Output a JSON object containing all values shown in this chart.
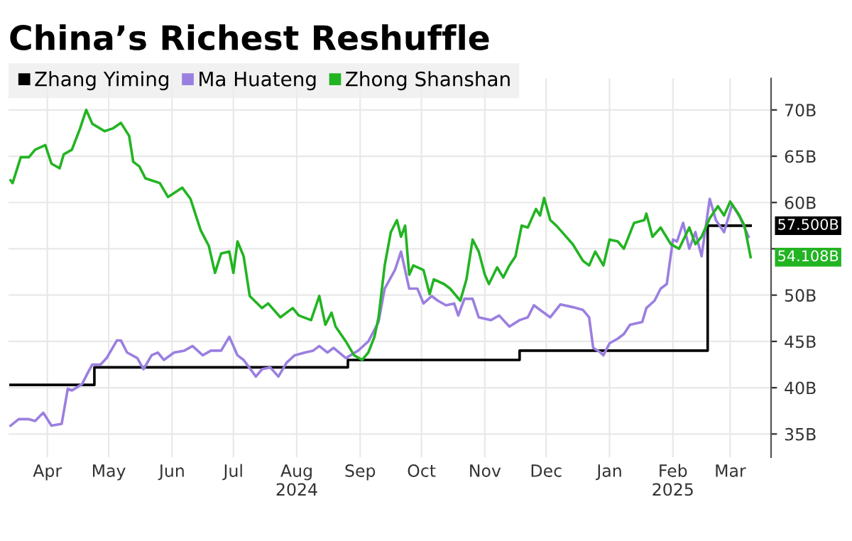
{
  "chart_data": {
    "type": "line",
    "title": "China’s Richest Reshuffle",
    "series": [
      {
        "name": "Zhang Yiming",
        "color": "#000000",
        "type": "step",
        "x": [
          "2024-03-28",
          "2024-05-08",
          "2024-09-09",
          "2024-12-02",
          "2025-03-04",
          "2025-03-25"
        ],
        "values": [
          40.3,
          42.2,
          43.0,
          44.0,
          57.5,
          57.5
        ]
      },
      {
        "name": "Ma Huateng",
        "color": "#9b7fe0",
        "x": [
          "2024-03-28",
          "2024-04-01",
          "2024-04-06",
          "2024-04-09",
          "2024-04-13",
          "2024-04-17",
          "2024-04-22",
          "2024-04-25",
          "2024-04-27",
          "2024-05-02",
          "2024-05-05",
          "2024-05-07",
          "2024-05-11",
          "2024-05-14",
          "2024-05-19",
          "2024-05-21",
          "2024-05-24",
          "2024-05-29",
          "2024-06-01",
          "2024-06-05",
          "2024-06-08",
          "2024-06-11",
          "2024-06-16",
          "2024-06-21",
          "2024-06-25",
          "2024-06-30",
          "2024-07-04",
          "2024-07-09",
          "2024-07-13",
          "2024-07-17",
          "2024-07-20",
          "2024-07-26",
          "2024-07-29",
          "2024-08-02",
          "2024-08-06",
          "2024-08-10",
          "2024-08-14",
          "2024-08-19",
          "2024-08-23",
          "2024-08-26",
          "2024-08-30",
          "2024-09-02",
          "2024-09-08",
          "2024-09-14",
          "2024-09-19",
          "2024-09-24",
          "2024-09-27",
          "2024-10-02",
          "2024-10-05",
          "2024-10-09",
          "2024-10-13",
          "2024-10-16",
          "2024-10-20",
          "2024-10-23",
          "2024-10-27",
          "2024-10-31",
          "2024-11-02",
          "2024-11-05",
          "2024-11-09",
          "2024-11-12",
          "2024-11-18",
          "2024-11-22",
          "2024-11-27",
          "2024-12-02",
          "2024-12-06",
          "2024-12-09",
          "2024-12-12",
          "2024-12-17",
          "2024-12-22",
          "2024-12-28",
          "2025-01-02",
          "2025-01-05",
          "2025-01-07",
          "2025-01-10",
          "2025-01-12",
          "2025-01-15",
          "2025-01-19",
          "2025-01-22",
          "2025-01-25",
          "2025-01-31",
          "2025-02-02",
          "2025-02-06",
          "2025-02-09",
          "2025-02-12",
          "2025-02-15",
          "2025-02-17",
          "2025-02-20",
          "2025-02-23",
          "2025-02-26",
          "2025-03-01",
          "2025-03-05",
          "2025-03-08",
          "2025-03-12",
          "2025-03-16",
          "2025-03-20",
          "2025-03-24"
        ],
        "values": [
          35.9,
          36.6,
          36.6,
          36.4,
          37.3,
          35.9,
          36.1,
          39.9,
          39.7,
          40.4,
          41.7,
          42.5,
          42.5,
          43.2,
          45.1,
          45.1,
          43.8,
          43.2,
          42.0,
          43.5,
          43.8,
          43.0,
          43.8,
          44.0,
          44.5,
          43.5,
          44.0,
          44.0,
          45.5,
          43.5,
          43.0,
          41.2,
          42.0,
          42.2,
          41.2,
          42.7,
          43.5,
          43.8,
          44.0,
          44.5,
          43.8,
          44.3,
          43.2,
          44.0,
          45.0,
          47.1,
          50.7,
          52.7,
          54.7,
          50.7,
          50.7,
          49.1,
          49.9,
          49.4,
          48.9,
          49.1,
          47.8,
          49.6,
          49.6,
          47.6,
          47.3,
          47.8,
          46.6,
          47.3,
          47.6,
          48.9,
          48.4,
          47.6,
          49.0,
          48.7,
          48.4,
          47.6,
          44.3,
          43.9,
          43.5,
          44.8,
          45.3,
          45.8,
          46.8,
          47.1,
          48.6,
          49.4,
          50.7,
          51.2,
          56.0,
          55.8,
          57.8,
          55.0,
          56.8,
          54.2,
          60.4,
          58.1,
          56.8,
          59.8,
          58.3,
          56.3
        ]
      },
      {
        "name": "Zhong Shanshan",
        "color": "#22b422",
        "x": [
          "2024-03-28",
          "2024-03-29",
          "2024-04-02",
          "2024-04-06",
          "2024-04-09",
          "2024-04-14",
          "2024-04-17",
          "2024-04-21",
          "2024-04-23",
          "2024-04-27",
          "2024-05-01",
          "2024-05-04",
          "2024-05-07",
          "2024-05-13",
          "2024-05-17",
          "2024-05-21",
          "2024-05-25",
          "2024-05-27",
          "2024-05-30",
          "2024-06-02",
          "2024-06-09",
          "2024-06-13",
          "2024-06-20",
          "2024-06-24",
          "2024-06-29",
          "2024-07-03",
          "2024-07-06",
          "2024-07-09",
          "2024-07-13",
          "2024-07-15",
          "2024-07-17",
          "2024-07-20",
          "2024-07-23",
          "2024-07-29",
          "2024-08-01",
          "2024-08-07",
          "2024-08-13",
          "2024-08-16",
          "2024-08-22",
          "2024-08-26",
          "2024-08-29",
          "2024-09-01",
          "2024-09-03",
          "2024-09-08",
          "2024-09-12",
          "2024-09-16",
          "2024-09-19",
          "2024-09-22",
          "2024-09-24",
          "2024-09-27",
          "2024-09-30",
          "2024-10-03",
          "2024-10-05",
          "2024-10-07",
          "2024-10-09",
          "2024-10-11",
          "2024-10-16",
          "2024-10-19",
          "2024-10-21",
          "2024-10-26",
          "2024-10-29",
          "2024-11-03",
          "2024-11-06",
          "2024-11-09",
          "2024-11-12",
          "2024-11-15",
          "2024-11-17",
          "2024-11-21",
          "2024-11-24",
          "2024-11-27",
          "2024-11-30",
          "2024-12-03",
          "2024-12-06",
          "2024-12-10",
          "2024-12-12",
          "2024-12-14",
          "2024-12-17",
          "2024-12-20",
          "2024-12-24",
          "2024-12-28",
          "2025-01-02",
          "2025-01-05",
          "2025-01-08",
          "2025-01-12",
          "2025-01-15",
          "2025-01-19",
          "2025-01-22",
          "2025-01-27",
          "2025-02-01",
          "2025-02-02",
          "2025-02-05",
          "2025-02-09",
          "2025-02-14",
          "2025-02-18",
          "2025-02-23",
          "2025-02-26",
          "2025-03-01",
          "2025-03-05",
          "2025-03-09",
          "2025-03-12",
          "2025-03-15",
          "2025-03-19",
          "2025-03-22",
          "2025-03-25"
        ],
        "values": [
          62.4,
          62.1,
          64.9,
          64.9,
          65.7,
          66.2,
          64.2,
          63.7,
          65.2,
          65.7,
          68.0,
          70.0,
          68.5,
          67.7,
          68.0,
          68.6,
          67.2,
          64.4,
          63.9,
          62.6,
          62.1,
          60.6,
          61.6,
          60.4,
          57.0,
          55.3,
          52.4,
          54.5,
          54.7,
          52.4,
          55.8,
          54.2,
          49.9,
          48.6,
          49.1,
          47.6,
          48.6,
          47.8,
          47.3,
          49.9,
          46.8,
          48.1,
          46.6,
          45.0,
          43.5,
          43.0,
          43.8,
          45.5,
          47.6,
          53.2,
          56.8,
          58.1,
          56.3,
          57.5,
          52.2,
          53.2,
          52.7,
          50.1,
          51.7,
          51.2,
          50.7,
          49.4,
          51.7,
          56.0,
          54.7,
          52.2,
          51.2,
          53.0,
          51.9,
          53.2,
          54.2,
          57.5,
          57.3,
          59.3,
          58.6,
          60.5,
          58.1,
          57.5,
          56.5,
          55.5,
          53.7,
          53.2,
          54.7,
          53.2,
          56.0,
          55.8,
          55.0,
          57.8,
          58.1,
          58.8,
          56.3,
          57.3,
          55.5,
          55.0,
          57.3,
          55.5,
          56.3,
          58.3,
          59.6,
          58.6,
          60.1,
          58.8,
          57.5,
          54.1
        ]
      }
    ],
    "annotations": [
      {
        "text": "57.500B",
        "x": "2025-03-25",
        "y": 57.5
      },
      {
        "text": "54.108B",
        "x": "2025-03-25",
        "y": 54.1
      }
    ],
    "xlim": [
      "2024-03-27",
      "2025-04-04"
    ],
    "xticks": [
      {
        "value": "2024-04-15",
        "label": "Apr"
      },
      {
        "value": "2024-05-15",
        "label": "May"
      },
      {
        "value": "2024-06-15",
        "label": "Jun"
      },
      {
        "value": "2024-07-15",
        "label": "Jul"
      },
      {
        "value": "2024-08-15",
        "label": "Aug\n2024"
      },
      {
        "value": "2024-09-15",
        "label": "Sep"
      },
      {
        "value": "2024-10-15",
        "label": "Oct"
      },
      {
        "value": "2024-11-15",
        "label": "Nov"
      },
      {
        "value": "2024-12-15",
        "label": "Dec"
      },
      {
        "value": "2025-01-15",
        "label": "Jan"
      },
      {
        "value": "2025-02-15",
        "label": "Feb\n2025"
      },
      {
        "value": "2025-03-15",
        "label": "Mar"
      }
    ],
    "ylim": [
      32.5,
      73.4
    ],
    "yticks": [
      {
        "value": 35,
        "label": "35B"
      },
      {
        "value": 40,
        "label": "40B"
      },
      {
        "value": 45,
        "label": "45B"
      },
      {
        "value": 50,
        "label": "50B"
      },
      {
        "value": 55,
        "label": null
      },
      {
        "value": 60,
        "label": "60B"
      },
      {
        "value": 65,
        "label": "65B"
      },
      {
        "value": 70,
        "label": "70B"
      }
    ],
    "grid": true,
    "legend": "top left"
  }
}
